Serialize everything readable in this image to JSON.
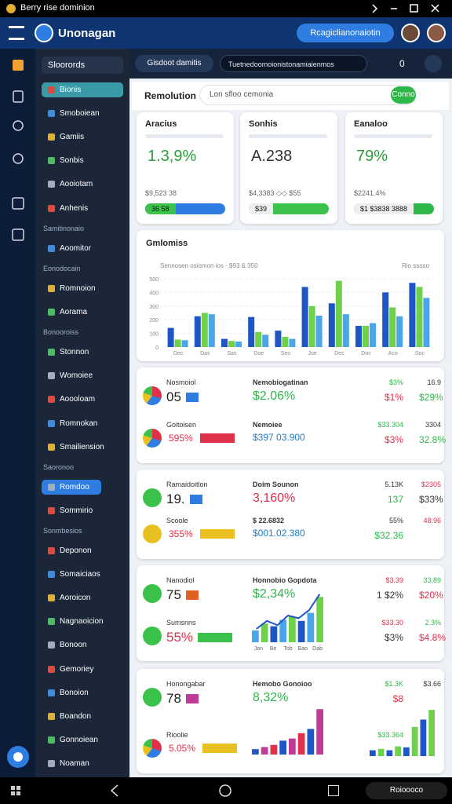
{
  "status_bar": {
    "title": "Berry rise dominion"
  },
  "header": {
    "app_name": "Unonagan",
    "action": "Rcagiclianonaiotin"
  },
  "sidebar": {
    "title": "Sloorords",
    "sections": [
      {
        "items": [
          "Bionis",
          "Smoboiean",
          "Gamiis",
          "Sonbis",
          "Aooiotam",
          "Anhenis"
        ]
      },
      {
        "heading": "Samitinonaio",
        "items": [
          "Aoomitor"
        ]
      },
      {
        "heading": "Eonodocain",
        "items": [
          "Romnoion",
          "Aorama"
        ]
      },
      {
        "heading": "Bonooroiss",
        "items": [
          "Stonnon",
          "Womoiee",
          "Aoooloam",
          "Romnokan",
          "Smailiension"
        ]
      },
      {
        "heading": "Saoronoo",
        "items": [
          "Romdoo",
          "Sommirio"
        ]
      },
      {
        "heading": "Sonmbesios",
        "items": [
          "Deponon",
          "Somaiciaos",
          "Aoroicon",
          "Nagnaoicion",
          "Bonoon",
          "Gemoriey",
          "Bonoion",
          "Boandon",
          "Gonnoiean",
          "Noaman"
        ]
      }
    ]
  },
  "toolbar": {
    "tab": "Gisdoot damitis",
    "search": "Tuetnedoomoionistonamiaienmos",
    "count": "0"
  },
  "page_header": {
    "title": "Remolution",
    "search": "Lon sfloo cemonia",
    "button": "Conno"
  },
  "stat_cards": [
    {
      "title": "Aracius",
      "value": "1.3,9%",
      "footnote": "$9,523 38",
      "badge": "36 58"
    },
    {
      "title": "Sonhis",
      "value": "A.238",
      "footnote": "$4,3383 ◇◇ $55",
      "badge": "$39"
    },
    {
      "title": "Eanaloo",
      "value": "79%",
      "footnote": "$2241.4%",
      "badge": "$1 $3838 3888"
    }
  ],
  "chart": {
    "title": "Gmlomiss",
    "subtitle": "Sennosen osiomon ios · $93 & 350",
    "corner": "Rio ssoso",
    "ylim": [
      0,
      500
    ],
    "yticks": [
      0,
      100,
      200,
      300,
      400,
      500
    ],
    "categories": [
      "Dec",
      "Das",
      "Sas",
      "Doe",
      "Seo",
      "Joe",
      "Dec",
      "Doc",
      "Aco",
      "Soc"
    ],
    "series": [
      {
        "color": "#1f56c6",
        "values": [
          140,
          225,
          60,
          220,
          120,
          440,
          320,
          155,
          400,
          470
        ]
      },
      {
        "color": "#6fd14a",
        "values": [
          55,
          250,
          45,
          110,
          75,
          300,
          485,
          155,
          290,
          440
        ]
      },
      {
        "color": "#4aa6e8",
        "values": [
          50,
          240,
          40,
          90,
          60,
          230,
          240,
          175,
          225,
          360
        ]
      }
    ]
  },
  "list_cards": [
    {
      "rows": [
        {
          "label": "Nosmoiol",
          "value": "05",
          "title": "Nemobiogatinan",
          "amount": "$2.06%",
          "stats": [
            "$3%",
            "16.9",
            "$1%",
            "$29%"
          ]
        },
        {
          "label": "Goitoisen",
          "value": "595%",
          "title": "Nemoiee",
          "amount": "$397 03.900",
          "stats": [
            "$33.304",
            "3304",
            "$3%",
            "32.8%"
          ]
        }
      ]
    },
    {
      "rows": [
        {
          "label": "Ramaidoitlon",
          "value": "19.",
          "title": "Doim Sounon",
          "amount": "3,160%",
          "stats": [
            "5.13K",
            "$2305",
            "137",
            "$33%"
          ]
        },
        {
          "label": "Scoole",
          "value": "355%",
          "title": "$ 22.6832",
          "amount": "$001.02.380",
          "stats": [
            "55%",
            "48.96",
            "$32.36"
          ]
        }
      ]
    },
    {
      "rows": [
        {
          "label": "Nanodiol",
          "value": "75",
          "title": "Honnobio Gopdota",
          "amount": "$2,34%",
          "stats": [
            "$3.39",
            "33.89",
            "1 $2%",
            "$20%"
          ]
        },
        {
          "label": "Sumsnns",
          "value": "55%",
          "stats": [
            "$33.30",
            "2.3%",
            "$3%",
            "$4.8%"
          ]
        }
      ],
      "mini_chart": {
        "ylim": [
          0,
          100
        ],
        "categories": [
          "Jan",
          "Be",
          "Tob",
          "Bao",
          "Dab"
        ],
        "bars": [
          22,
          35,
          30,
          42,
          48,
          40,
          55,
          85
        ],
        "line": [
          25,
          40,
          32,
          50,
          45,
          60,
          90
        ]
      }
    },
    {
      "rows": [
        {
          "label": "Honongabar",
          "value": "78",
          "title": "Hemobo Gonoioo",
          "amount": "8,32%",
          "stats": [
            "$1.3K",
            "$3.66",
            "$8"
          ]
        },
        {
          "label": "Rioolie",
          "value": "5.05%",
          "stats": [
            "$33.364"
          ]
        }
      ],
      "mini_chart": {
        "ylim": [
          0,
          100
        ],
        "bars": [
          10,
          14,
          18,
          26,
          30,
          40,
          48,
          85
        ]
      },
      "side_chart": {
        "ylim": [
          0,
          100
        ],
        "bars": [
          12,
          15,
          12,
          20,
          18,
          60,
          75,
          95
        ]
      }
    }
  ],
  "bottom_bar": {
    "search": "Roioooco"
  }
}
